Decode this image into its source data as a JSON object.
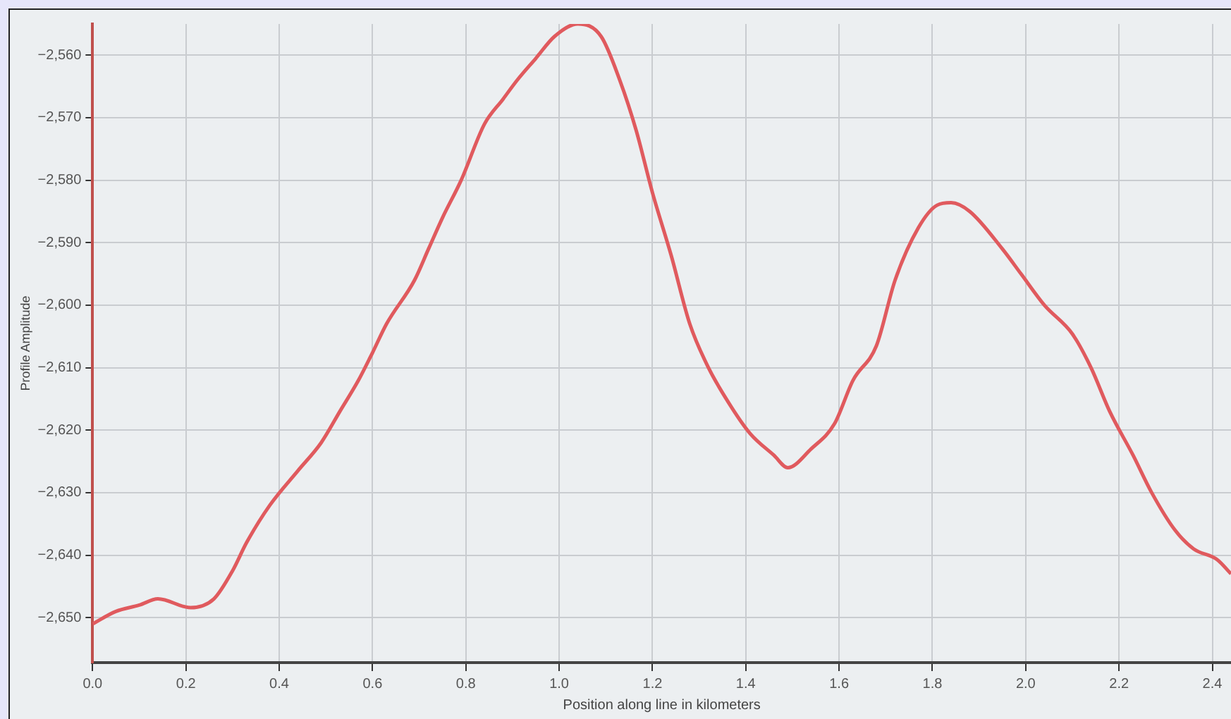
{
  "chart_data": {
    "type": "line",
    "xlabel": "Position along line in kilometers",
    "ylabel": "Profile Amplitude",
    "xlim": [
      0,
      2.44
    ],
    "ylim": [
      -2657.2,
      -2555
    ],
    "xticks": [
      {
        "value": 0,
        "label": "0.0"
      },
      {
        "value": 0.2,
        "label": "0.2"
      },
      {
        "value": 0.4,
        "label": "0.4"
      },
      {
        "value": 0.6,
        "label": "0.6"
      },
      {
        "value": 0.8,
        "label": "0.8"
      },
      {
        "value": 1,
        "label": "1.0"
      },
      {
        "value": 1.2,
        "label": "1.2"
      },
      {
        "value": 1.4,
        "label": "1.4"
      },
      {
        "value": 1.6,
        "label": "1.6"
      },
      {
        "value": 1.8,
        "label": "1.8"
      },
      {
        "value": 2,
        "label": "2.0"
      },
      {
        "value": 2.2,
        "label": "2.2"
      },
      {
        "value": 2.4,
        "label": "2.4"
      }
    ],
    "yticks": [
      {
        "value": -2650,
        "label": "−2,650"
      },
      {
        "value": -2640,
        "label": "−2,640"
      },
      {
        "value": -2630,
        "label": "−2,630"
      },
      {
        "value": -2620,
        "label": "−2,620"
      },
      {
        "value": -2610,
        "label": "−2,610"
      },
      {
        "value": -2600,
        "label": "−2,600"
      },
      {
        "value": -2590,
        "label": "−2,590"
      },
      {
        "value": -2580,
        "label": "−2,580"
      },
      {
        "value": -2570,
        "label": "−2,570"
      },
      {
        "value": -2560,
        "label": "−2,560"
      }
    ],
    "grid": true,
    "marker": "none",
    "line_style": "solid",
    "series": [
      {
        "color": "#e05a5e",
        "x": [
          0,
          0.05,
          0.1,
          0.14,
          0.21,
          0.26,
          0.3,
          0.33,
          0.38,
          0.44,
          0.49,
          0.53,
          0.57,
          0.6,
          0.63,
          0.69,
          0.72,
          0.75,
          0.79,
          0.84,
          0.88,
          0.91,
          0.95,
          0.99,
          1.04,
          1.09,
          1.13,
          1.165,
          1.2,
          1.24,
          1.28,
          1.32,
          1.37,
          1.41,
          1.46,
          1.49,
          1.54,
          1.59,
          1.63,
          1.68,
          1.72,
          1.77,
          1.81,
          1.84,
          1.88,
          1.95,
          1.99,
          2.04,
          2.1,
          2.14,
          2.18,
          2.23,
          2.27,
          2.32,
          2.36,
          2.41,
          2.44
        ],
        "values": [
          -2651,
          -2649,
          -2648,
          -2647,
          -2648.4,
          -2647,
          -2642.5,
          -2638,
          -2632,
          -2626.5,
          -2622,
          -2617,
          -2612,
          -2607.6,
          -2603,
          -2596,
          -2591,
          -2586,
          -2580,
          -2571,
          -2567,
          -2564,
          -2560.5,
          -2557,
          -2555,
          -2557,
          -2564,
          -2572,
          -2582,
          -2592,
          -2603,
          -2610,
          -2616.4,
          -2620.6,
          -2624,
          -2626,
          -2623,
          -2619,
          -2612,
          -2606.5,
          -2596,
          -2587.6,
          -2584,
          -2583.6,
          -2585,
          -2591,
          -2595,
          -2600,
          -2604.6,
          -2610,
          -2617,
          -2624,
          -2630,
          -2636,
          -2639,
          -2640.7,
          -2643
        ]
      }
    ]
  }
}
